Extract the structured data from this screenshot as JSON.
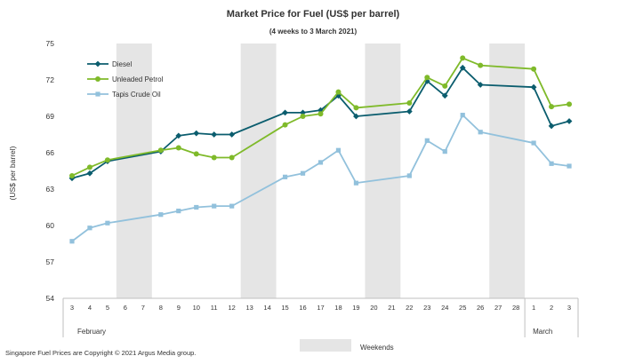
{
  "chart_data": {
    "type": "line",
    "title": "Market Price for Fuel  (US$  per barrel)",
    "subtitle": "(4 weeks to 3 March  2021)",
    "ylabel": "(US$ per barrel)",
    "xlabel": "",
    "ylim": [
      54,
      75
    ],
    "yticks": [
      54,
      57,
      60,
      63,
      66,
      69,
      72,
      75
    ],
    "categories": [
      "3",
      "4",
      "5",
      "6",
      "7",
      "8",
      "9",
      "10",
      "11",
      "12",
      "13",
      "14",
      "15",
      "16",
      "17",
      "18",
      "19",
      "20",
      "21",
      "22",
      "23",
      "24",
      "25",
      "26",
      "27",
      "28",
      "1",
      "2",
      "3"
    ],
    "month_labels": [
      "February",
      "March"
    ],
    "weekend_ranges": [
      [
        3,
        4
      ],
      [
        10,
        11
      ],
      [
        17,
        18
      ],
      [
        24,
        25
      ]
    ],
    "weekend_legend_label": "Weekends",
    "legend_position": "top-left",
    "series": [
      {
        "name": "Diesel",
        "color": "#0b5d6e",
        "marker": "diamond",
        "values": [
          63.9,
          64.3,
          65.3,
          null,
          null,
          66.1,
          67.4,
          67.6,
          67.5,
          67.5,
          null,
          null,
          69.3,
          69.3,
          69.5,
          70.7,
          69.0,
          null,
          null,
          69.4,
          71.9,
          70.7,
          73.0,
          71.6,
          null,
          null,
          71.4,
          68.2,
          68.6
        ]
      },
      {
        "name": "Unleaded Petrol",
        "color": "#7fba2a",
        "marker": "circle",
        "values": [
          64.1,
          64.8,
          65.4,
          null,
          null,
          66.2,
          66.4,
          65.9,
          65.6,
          65.6,
          null,
          null,
          68.3,
          69.0,
          69.2,
          71.0,
          69.7,
          null,
          null,
          70.1,
          72.2,
          71.5,
          73.8,
          73.2,
          null,
          null,
          72.9,
          69.8,
          70.0
        ]
      },
      {
        "name": "Tapis Crude Oil",
        "color": "#92c1dc",
        "marker": "square",
        "values": [
          58.7,
          59.8,
          60.2,
          null,
          null,
          60.9,
          61.2,
          61.5,
          61.6,
          61.6,
          null,
          null,
          64.0,
          64.3,
          65.2,
          66.2,
          63.5,
          null,
          null,
          64.1,
          67.0,
          66.1,
          69.1,
          67.7,
          null,
          null,
          66.8,
          65.1,
          64.9
        ]
      }
    ]
  },
  "footer": {
    "copyright": "Singapore  Fuel Prices are Copyright  © 2021  Argus Media group."
  }
}
